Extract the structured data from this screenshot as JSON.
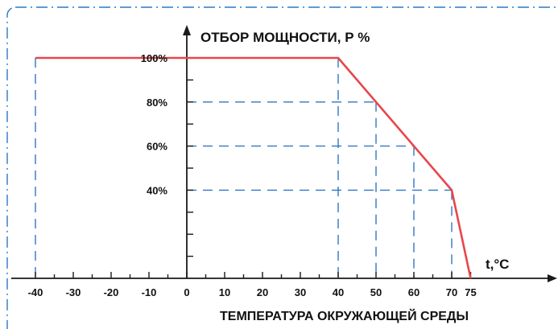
{
  "chart_data": {
    "type": "line",
    "title": "ОТБОР МОЩНОСТИ, Р %",
    "xlabel": "ТЕМПЕРАТУРА ОКРУЖАЮЩЕЙ СРЕДЫ",
    "x_unit": "t,°C",
    "xlim": [
      -40,
      75
    ],
    "ylim": [
      0,
      100
    ],
    "x_ticks": [
      -40,
      -30,
      -20,
      -10,
      0,
      10,
      20,
      30,
      40,
      50,
      60,
      70,
      75
    ],
    "x_tick_labels": [
      "-40",
      "-30",
      "-20",
      "-10",
      "0",
      "10",
      "20",
      "30",
      "40",
      "50",
      "60",
      "70",
      "75"
    ],
    "y_ticks": [
      100,
      80,
      60,
      40
    ],
    "y_tick_labels": [
      "100%",
      "80%",
      "60%",
      "40%"
    ],
    "series": [
      {
        "x": [
          -40,
          40,
          70,
          75
        ],
        "y": [
          100,
          100,
          40,
          0
        ]
      }
    ],
    "reference_lines": [
      {
        "x": 50,
        "y": 80
      },
      {
        "x": 60,
        "y": 60
      },
      {
        "x": 70,
        "y": 40
      }
    ],
    "grid": false,
    "colors": {
      "line": "#e8464a",
      "guide": "#2e78c2",
      "frame": "#2e78c2",
      "axis": "#1a1a1a"
    }
  }
}
